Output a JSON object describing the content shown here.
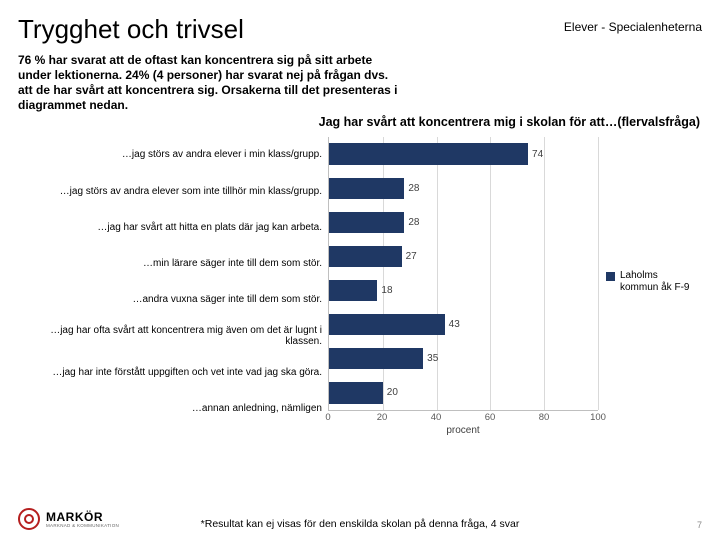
{
  "title": "Trygghet och trivsel",
  "header_right": "Elever - Specialenheterna",
  "intro_text": "76 % har svarat att de oftast kan koncentrera sig på sitt arbete under lektionerna. 24% (4 personer) har svarat nej på frågan dvs. att de har svårt att koncentrera sig. Orsakerna till det presenteras i diagrammet nedan.",
  "chart": {
    "type": "bar-horizontal",
    "title": "Jag har svårt att koncentrera mig i skolan för att…(flervalsfråga)",
    "xlabel": "procent",
    "xlim": [
      0,
      100
    ],
    "xtick_step": 20,
    "bar_color": "#1f3864",
    "grid_color": "#d9d9d9",
    "axis_color": "#bfbfbf",
    "background_color": "#ffffff",
    "label_fontsize": 10,
    "value_fontsize": 10,
    "items": [
      {
        "label": "…jag störs av andra elever i min klass/grupp.",
        "value": 74
      },
      {
        "label": "…jag störs av andra elever som inte tillhör min klass/grupp.",
        "value": 28
      },
      {
        "label": "…jag har svårt att hitta en plats där jag kan arbeta.",
        "value": 28
      },
      {
        "label": "…min lärare säger inte till dem som stör.",
        "value": 27
      },
      {
        "label": "…andra vuxna säger inte till dem som stör.",
        "value": 18
      },
      {
        "label": "…jag har ofta svårt att koncentrera mig även om det är lugnt i klassen.",
        "value": 43
      },
      {
        "label": "…jag har inte förstått uppgiften och vet inte vad jag ska göra.",
        "value": 35
      },
      {
        "label": "…annan anledning, nämligen",
        "value": 20
      }
    ]
  },
  "legend": {
    "label": "Laholms kommun åk F-9",
    "color": "#1f3864"
  },
  "logo": {
    "name": "MARKÖR",
    "tagline": "MARKNAD & KOMMUNIKATION"
  },
  "footnote": "*Resultat kan ej visas för den enskilda skolan på denna fråga, 4 svar",
  "page_number": "7"
}
